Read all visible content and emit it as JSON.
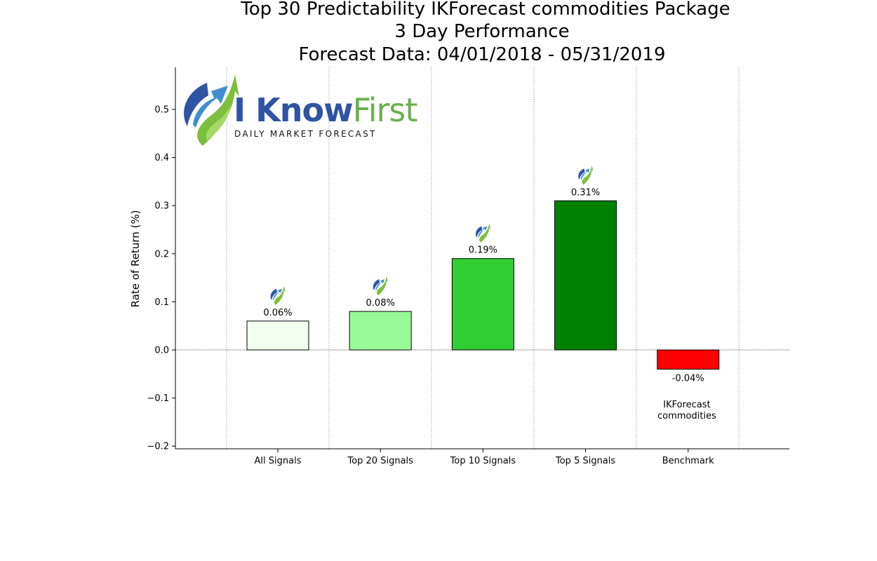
{
  "chart_data": {
    "type": "bar",
    "title_lines": [
      "Top 30 Predictability IKForecast commodities Package",
      "3 Day Performance",
      "Forecast Data: 04/01/2018 - 05/31/2019"
    ],
    "ylabel": "Rate of Return (%)",
    "xlabel": "",
    "ylim": [
      -0.2,
      0.6
    ],
    "yticks": [
      {
        "value": -0.2,
        "label": "−0.2"
      },
      {
        "value": -0.1,
        "label": "−0.1"
      },
      {
        "value": 0.0,
        "label": "0.0"
      },
      {
        "value": 0.1,
        "label": "0.1"
      },
      {
        "value": 0.2,
        "label": "0.2"
      },
      {
        "value": 0.3,
        "label": "0.3"
      },
      {
        "value": 0.4,
        "label": "0.4"
      },
      {
        "value": 0.5,
        "label": "0.5"
      }
    ],
    "categories": [
      "All Signals",
      "Top 20 Signals",
      "Top 10 Signals",
      "Top 5 Signals",
      "Benchmark"
    ],
    "values": [
      0.06,
      0.08,
      0.19,
      0.31,
      -0.04
    ],
    "data_labels": [
      "0.06%",
      "0.08%",
      "0.19%",
      "0.31%",
      "-0.04%"
    ],
    "bar_colors": [
      "#f0fff0",
      "#98fb98",
      "#32cd32",
      "#008000",
      "#ff0000"
    ],
    "grid": "vertical dotted",
    "benchmark_note": [
      "IKForecast",
      "commodities"
    ]
  },
  "logo": {
    "brand_part1": "I Know",
    "brand_part2": "First",
    "tagline": "Daily Market Forecast"
  }
}
